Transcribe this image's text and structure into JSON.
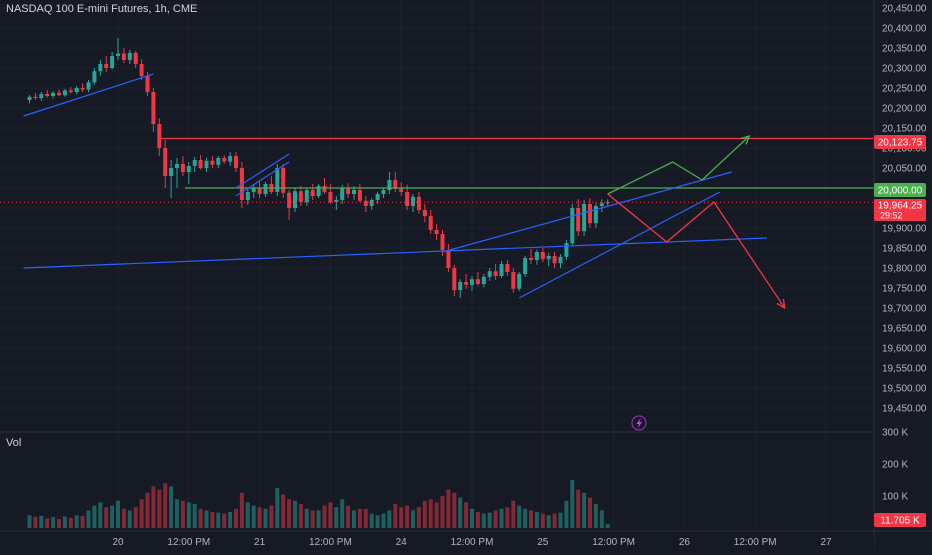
{
  "header": {
    "title": "NASDAQ 100 E-mini Futures, 1h, CME"
  },
  "volume_pane": {
    "label": "Vol"
  },
  "price_tags": {
    "resistance": {
      "value": "20,123.75",
      "color": "#f23645"
    },
    "level": {
      "value": "20,000.00",
      "color": "#4caf50"
    },
    "last": {
      "value": "19,964.25",
      "countdown": "29:52",
      "color": "#f23645"
    },
    "volume": {
      "value": "11.705 K",
      "color": "#f23645"
    }
  },
  "icons": {
    "lightning": "lightning-bolt-icon"
  },
  "chart_data": {
    "type": "candlestick",
    "title": "NASDAQ 100 E-mini Futures, 1h, CME",
    "timeframe": "1h",
    "exchange": "CME",
    "y_axis": {
      "ticks": [
        "20,450.00",
        "20,400.00",
        "20,350.00",
        "20,300.00",
        "20,250.00",
        "20,200.00",
        "20,150.00",
        "20,100.00",
        "20,050.00",
        "20,000.00",
        "19,950.00",
        "19,900.00",
        "19,850.00",
        "19,800.00",
        "19,750.00",
        "19,700.00",
        "19,650.00",
        "19,600.00",
        "19,550.00",
        "19,500.00",
        "19,450.00"
      ],
      "range": [
        19400,
        20470
      ]
    },
    "volume_axis": {
      "ticks": [
        "300 K",
        "200 K",
        "100 K"
      ],
      "range": [
        0,
        300
      ]
    },
    "x_axis": {
      "ticks": [
        {
          "label": "20",
          "t": 0
        },
        {
          "label": "12:00 PM",
          "t": 12
        },
        {
          "label": "21",
          "t": 24
        },
        {
          "label": "12:00 PM",
          "t": 36
        },
        {
          "label": "24",
          "t": 48
        },
        {
          "label": "12:00 PM",
          "t": 60
        },
        {
          "label": "25",
          "t": 72
        },
        {
          "label": "12:00 PM",
          "t": 84
        },
        {
          "label": "26",
          "t": 96
        },
        {
          "label": "12:00 PM",
          "t": 108
        },
        {
          "label": "27",
          "t": 120
        }
      ]
    },
    "colors": {
      "up": "#26a69a",
      "down": "#f23645",
      "trend": "#2962ff",
      "bull_path": "#4caf50",
      "bear_path": "#f23645"
    },
    "levels": [
      {
        "price": 20123.75,
        "color": "#f23645"
      },
      {
        "price": 20000.0,
        "color": "#4caf50"
      }
    ],
    "last_price": 19964.25,
    "candles": [
      [
        -15,
        20220,
        20232,
        20212,
        20228,
        40
      ],
      [
        -14,
        20228,
        20238,
        20220,
        20225,
        35
      ],
      [
        -13,
        20225,
        20240,
        20218,
        20235,
        38
      ],
      [
        -12,
        20235,
        20245,
        20226,
        20230,
        30
      ],
      [
        -11,
        20230,
        20242,
        20224,
        20238,
        34
      ],
      [
        -10,
        20238,
        20246,
        20230,
        20232,
        28
      ],
      [
        -9,
        20232,
        20248,
        20228,
        20244,
        36
      ],
      [
        -8,
        20244,
        20252,
        20236,
        20240,
        32
      ],
      [
        -7,
        20240,
        20255,
        20234,
        20250,
        40
      ],
      [
        -6,
        20250,
        20262,
        20240,
        20246,
        38
      ],
      [
        -5,
        20246,
        20270,
        20240,
        20264,
        55
      ],
      [
        -4,
        20264,
        20300,
        20258,
        20292,
        70
      ],
      [
        -3,
        20292,
        20320,
        20280,
        20310,
        80
      ],
      [
        -2,
        20310,
        20330,
        20290,
        20300,
        65
      ],
      [
        -1,
        20300,
        20340,
        20296,
        20330,
        70
      ],
      [
        0,
        20330,
        20375,
        20320,
        20336,
        85
      ],
      [
        1,
        20336,
        20350,
        20312,
        20320,
        60
      ],
      [
        2,
        20320,
        20345,
        20310,
        20338,
        55
      ],
      [
        3,
        20338,
        20342,
        20300,
        20310,
        65
      ],
      [
        4,
        20310,
        20322,
        20270,
        20280,
        90
      ],
      [
        5,
        20280,
        20290,
        20230,
        20240,
        110
      ],
      [
        6,
        20240,
        20250,
        20140,
        20160,
        130
      ],
      [
        7,
        20160,
        20175,
        20080,
        20100,
        120
      ],
      [
        8,
        20100,
        20120,
        20000,
        20030,
        140
      ],
      [
        9,
        20030,
        20070,
        19975,
        20050,
        130
      ],
      [
        10,
        20050,
        20075,
        20000,
        20060,
        90
      ],
      [
        11,
        20060,
        20080,
        20030,
        20040,
        85
      ],
      [
        12,
        20040,
        20065,
        20010,
        20055,
        80
      ],
      [
        13,
        20055,
        20078,
        20040,
        20070,
        75
      ],
      [
        14,
        20070,
        20082,
        20046,
        20050,
        60
      ],
      [
        15,
        20050,
        20075,
        20040,
        20068,
        55
      ],
      [
        16,
        20068,
        20080,
        20050,
        20058,
        50
      ],
      [
        17,
        20058,
        20080,
        20050,
        20075,
        48
      ],
      [
        18,
        20075,
        20082,
        20060,
        20066,
        45
      ],
      [
        19,
        20066,
        20090,
        20055,
        20080,
        50
      ],
      [
        20,
        20080,
        20090,
        20040,
        20050,
        60
      ],
      [
        21,
        20050,
        20065,
        19950,
        19970,
        110
      ],
      [
        22,
        19970,
        19998,
        19958,
        19990,
        80
      ],
      [
        23,
        19990,
        20010,
        19975,
        20000,
        70
      ],
      [
        24,
        20000,
        20018,
        19975,
        19985,
        65
      ],
      [
        25,
        19985,
        20015,
        19978,
        20010,
        60
      ],
      [
        26,
        20010,
        20030,
        19985,
        19990,
        70
      ],
      [
        27,
        19990,
        20060,
        19980,
        20050,
        125
      ],
      [
        28,
        20050,
        20060,
        19975,
        19988,
        105
      ],
      [
        29,
        19988,
        19995,
        19920,
        19950,
        90
      ],
      [
        30,
        19950,
        20000,
        19940,
        19992,
        85
      ],
      [
        31,
        19992,
        20005,
        19955,
        19965,
        75
      ],
      [
        32,
        19965,
        20000,
        19955,
        19995,
        60
      ],
      [
        33,
        19995,
        20010,
        19970,
        19980,
        55
      ],
      [
        34,
        19980,
        20010,
        19975,
        20005,
        55
      ],
      [
        35,
        20005,
        20025,
        19985,
        19990,
        70
      ],
      [
        36,
        19990,
        20010,
        19960,
        19965,
        80
      ],
      [
        37,
        19965,
        19980,
        19945,
        19970,
        65
      ],
      [
        38,
        19970,
        20008,
        19960,
        20000,
        90
      ],
      [
        39,
        20000,
        20012,
        19975,
        19985,
        70
      ],
      [
        40,
        19985,
        20005,
        19970,
        19995,
        55
      ],
      [
        41,
        19995,
        20010,
        19965,
        19968,
        60
      ],
      [
        42,
        19968,
        19980,
        19940,
        19955,
        60
      ],
      [
        43,
        19955,
        19975,
        19945,
        19970,
        45
      ],
      [
        44,
        19970,
        19990,
        19960,
        19985,
        40
      ],
      [
        45,
        19985,
        20000,
        19975,
        19995,
        45
      ],
      [
        46,
        19995,
        20040,
        19985,
        20020,
        55
      ],
      [
        47,
        20020,
        20040,
        19990,
        19998,
        75
      ],
      [
        48,
        19998,
        20015,
        19980,
        19990,
        65
      ],
      [
        49,
        19990,
        20008,
        19945,
        19955,
        70
      ],
      [
        50,
        19955,
        19985,
        19940,
        19978,
        55
      ],
      [
        51,
        19978,
        19990,
        19935,
        19945,
        65
      ],
      [
        52,
        19945,
        19960,
        19915,
        19930,
        85
      ],
      [
        53,
        19930,
        19945,
        19885,
        19895,
        90
      ],
      [
        54,
        19895,
        19910,
        19870,
        19885,
        80
      ],
      [
        55,
        19885,
        19895,
        19830,
        19845,
        100
      ],
      [
        56,
        19845,
        19860,
        19790,
        19800,
        120
      ],
      [
        57,
        19800,
        19808,
        19730,
        19745,
        110
      ],
      [
        58,
        19745,
        19772,
        19725,
        19765,
        95
      ],
      [
        59,
        19765,
        19785,
        19748,
        19758,
        80
      ],
      [
        60,
        19758,
        19780,
        19742,
        19772,
        60
      ],
      [
        61,
        19772,
        19790,
        19755,
        19760,
        50
      ],
      [
        62,
        19760,
        19785,
        19752,
        19778,
        45
      ],
      [
        63,
        19778,
        19800,
        19768,
        19792,
        48
      ],
      [
        64,
        19792,
        19810,
        19770,
        19780,
        55
      ],
      [
        65,
        19780,
        19818,
        19775,
        19810,
        60
      ],
      [
        66,
        19810,
        19820,
        19780,
        19790,
        65
      ],
      [
        67,
        19790,
        19800,
        19738,
        19748,
        85
      ],
      [
        68,
        19748,
        19790,
        19742,
        19785,
        70
      ],
      [
        69,
        19785,
        19830,
        19778,
        19825,
        60
      ],
      [
        70,
        19825,
        19848,
        19810,
        19820,
        55
      ],
      [
        71,
        19820,
        19846,
        19808,
        19840,
        50
      ],
      [
        72,
        19840,
        19850,
        19815,
        19822,
        45
      ],
      [
        73,
        19822,
        19838,
        19805,
        19830,
        40
      ],
      [
        74,
        19830,
        19840,
        19800,
        19812,
        45
      ],
      [
        75,
        19812,
        19835,
        19800,
        19828,
        48
      ],
      [
        76,
        19828,
        19870,
        19820,
        19862,
        85
      ],
      [
        77,
        19862,
        19960,
        19855,
        19950,
        150
      ],
      [
        78,
        19950,
        19972,
        19880,
        19892,
        120
      ],
      [
        79,
        19892,
        19970,
        19880,
        19960,
        110
      ],
      [
        80,
        19960,
        19975,
        19900,
        19912,
        95
      ],
      [
        81,
        19912,
        19962,
        19900,
        19955,
        75
      ],
      [
        82,
        19955,
        19972,
        19940,
        19962,
        55
      ],
      [
        83,
        19962,
        19972,
        19955,
        19964,
        12
      ]
    ],
    "trendlines": [
      {
        "name": "early-uptrend",
        "color": "#2962ff",
        "points": [
          [
            -16,
            20180
          ],
          [
            6,
            20285
          ]
        ]
      },
      {
        "name": "long-support",
        "color": "#2962ff",
        "points": [
          [
            -16,
            19800
          ],
          [
            110,
            19875
          ]
        ]
      },
      {
        "name": "flag-upper",
        "color": "#2962ff",
        "points": [
          [
            20,
            20000
          ],
          [
            29,
            20085
          ]
        ]
      },
      {
        "name": "flag-lower",
        "color": "#2962ff",
        "points": [
          [
            20,
            19980
          ],
          [
            29,
            20065
          ]
        ]
      },
      {
        "name": "wedge-upper",
        "color": "#2962ff",
        "points": [
          [
            55,
            19840
          ],
          [
            104,
            20040
          ]
        ]
      },
      {
        "name": "wedge-lower",
        "color": "#2962ff",
        "points": [
          [
            68,
            19725
          ],
          [
            102,
            19990
          ]
        ]
      }
    ],
    "projections": [
      {
        "name": "bullish-path",
        "color": "#4caf50",
        "points": [
          [
            83,
            19985
          ],
          [
            94,
            20065
          ],
          [
            99,
            20020
          ],
          [
            107,
            20130
          ]
        ]
      },
      {
        "name": "bearish-path",
        "color": "#f23645",
        "points": [
          [
            83,
            19985
          ],
          [
            93,
            19865
          ],
          [
            101,
            19965
          ],
          [
            113,
            19700
          ]
        ]
      }
    ]
  }
}
